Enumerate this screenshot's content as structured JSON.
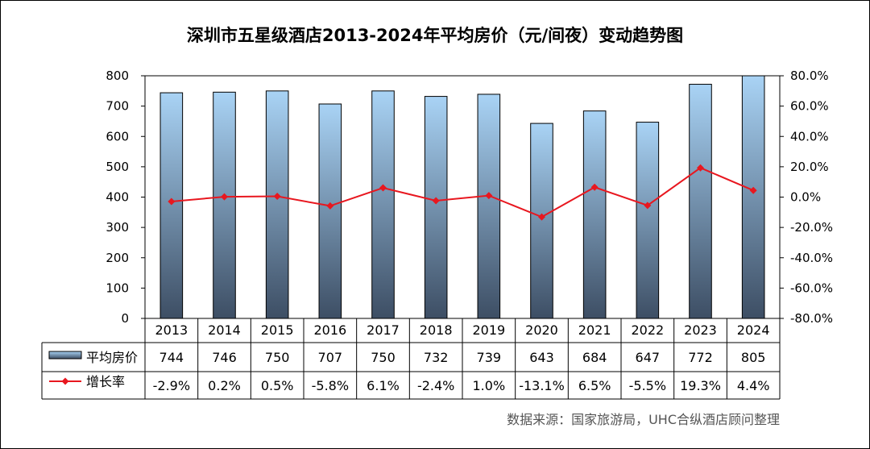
{
  "chart_data": {
    "type": "bar",
    "title": "深圳市五星级酒店2013-2024年平均房价（元/间夜）变动趋势图",
    "categories": [
      "2013",
      "2014",
      "2015",
      "2016",
      "2017",
      "2018",
      "2019",
      "2020",
      "2021",
      "2022",
      "2023",
      "2024"
    ],
    "series": [
      {
        "name": "平均房价",
        "type": "bar",
        "axis": "left",
        "values": [
          744,
          746,
          750,
          707,
          750,
          732,
          739,
          643,
          684,
          647,
          772,
          805
        ],
        "labels": [
          "744",
          "746",
          "750",
          "707",
          "750",
          "732",
          "739",
          "643",
          "684",
          "647",
          "772",
          "805"
        ]
      },
      {
        "name": "增长率",
        "type": "line",
        "axis": "right",
        "values": [
          -2.9,
          0.2,
          0.5,
          -5.8,
          6.1,
          -2.4,
          1.0,
          -13.1,
          6.5,
          -5.5,
          19.3,
          4.4
        ],
        "labels": [
          "-2.9%",
          "0.2%",
          "0.5%",
          "-5.8%",
          "6.1%",
          "-2.4%",
          "1.0%",
          "-13.1%",
          "6.5%",
          "-5.5%",
          "19.3%",
          "4.4%"
        ]
      }
    ],
    "y_left": {
      "min": 0,
      "max": 800,
      "ticks": [
        "0",
        "100",
        "200",
        "300",
        "400",
        "500",
        "600",
        "700",
        "800"
      ]
    },
    "y_right": {
      "min": -80,
      "max": 80,
      "ticks": [
        "-80.0%",
        "-60.0%",
        "-40.0%",
        "-20.0%",
        "0.0%",
        "20.0%",
        "40.0%",
        "60.0%",
        "80.0%"
      ]
    },
    "legend": "data-table",
    "grid": false,
    "colors": {
      "bar_top": "#a9d3f5",
      "bar_bottom": "#3d4e64",
      "line": "#e8171f"
    }
  },
  "source": "数据来源：国家旅游局，UHC合纵酒店顾问整理"
}
